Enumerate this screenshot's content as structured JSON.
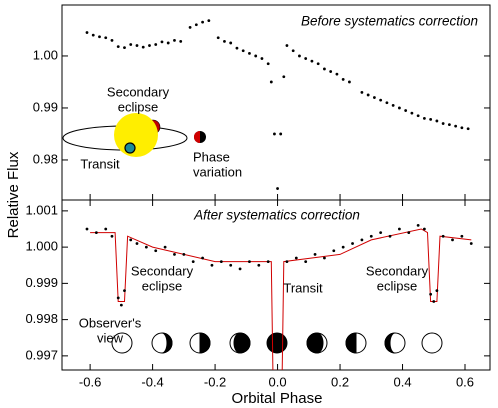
{
  "chart_data": [
    {
      "type": "scatter",
      "ylabel": "Relative Flux",
      "annotations": [
        [
          "Before systematics correction"
        ],
        [
          "Secondary",
          "eclipse"
        ],
        [
          "Transit"
        ],
        [
          "Phase",
          "variation"
        ]
      ],
      "color": "#000000",
      "x": [
        -0.61,
        -0.59,
        -0.57,
        -0.55,
        -0.53,
        -0.51,
        -0.49,
        -0.47,
        -0.45,
        -0.43,
        -0.41,
        -0.39,
        -0.37,
        -0.35,
        -0.33,
        -0.31,
        -0.28,
        -0.26,
        -0.24,
        -0.22,
        -0.19,
        -0.17,
        -0.15,
        -0.13,
        -0.11,
        -0.09,
        -0.07,
        -0.05,
        -0.03,
        -0.02,
        -0.01,
        0.0,
        0.01,
        0.02,
        0.03,
        0.05,
        0.07,
        0.09,
        0.11,
        0.13,
        0.15,
        0.17,
        0.19,
        0.21,
        0.23,
        0.27,
        0.29,
        0.31,
        0.33,
        0.35,
        0.37,
        0.39,
        0.41,
        0.43,
        0.45,
        0.47,
        0.49,
        0.51,
        0.53,
        0.55,
        0.57,
        0.59,
        0.61
      ],
      "values": [
        1.0045,
        1.004,
        1.0037,
        1.0035,
        1.003,
        1.0018,
        1.0016,
        1.0022,
        1.002,
        1.0017,
        1.002,
        1.0022,
        1.0027,
        1.0025,
        1.003,
        1.0028,
        1.0055,
        1.006,
        1.0065,
        1.0068,
        1.0035,
        1.0028,
        1.0025,
        1.0015,
        1.001,
        1.0005,
        1.0,
        0.9995,
        0.9985,
        0.995,
        0.985,
        0.9745,
        0.985,
        0.996,
        1.002,
        1.001,
        1.0,
        0.9995,
        0.999,
        0.9985,
        0.9975,
        0.997,
        0.9965,
        0.9955,
        0.995,
        0.993,
        0.9925,
        0.992,
        0.9915,
        0.991,
        0.9905,
        0.99,
        0.9895,
        0.989,
        0.9885,
        0.988,
        0.9878,
        0.9875,
        0.987,
        0.9868,
        0.9865,
        0.9862,
        0.986
      ],
      "xlim": [
        -0.69,
        0.68
      ],
      "ylim": [
        0.9723,
        1.0098
      ],
      "yticks": [
        0.98,
        0.99,
        {
          "value": 1.0,
          "label": "1.00"
        }
      ]
    },
    {
      "type": "scatter",
      "xlabel": "Orbital Phase",
      "annotations": [
        [
          "After systematics correction"
        ],
        [
          "Secondary",
          "eclipse"
        ],
        [
          "Transit"
        ],
        [
          "Secondary",
          "eclipse"
        ],
        [
          "Observer's",
          "view"
        ]
      ],
      "color": "#000000",
      "x": [
        -0.61,
        -0.58,
        -0.55,
        -0.53,
        -0.51,
        -0.5,
        -0.49,
        -0.47,
        -0.45,
        -0.42,
        -0.39,
        -0.36,
        -0.33,
        -0.3,
        -0.27,
        -0.24,
        -0.21,
        -0.18,
        -0.15,
        -0.12,
        -0.09,
        -0.06,
        -0.03,
        0.03,
        0.06,
        0.09,
        0.12,
        0.15,
        0.18,
        0.21,
        0.24,
        0.27,
        0.3,
        0.33,
        0.36,
        0.39,
        0.42,
        0.45,
        0.47,
        0.49,
        0.5,
        0.51,
        0.53,
        0.56,
        0.59,
        0.62
      ],
      "values": [
        1.0005,
        1.0004,
        1.0005,
        1.0003,
        0.9986,
        0.9984,
        0.9988,
        1.0002,
        1.0001,
        1.0,
        0.9999,
        1.0,
        0.9998,
        0.9998,
        0.9996,
        0.9997,
        0.9995,
        0.9996,
        0.9995,
        0.9994,
        0.9996,
        0.9995,
        0.9996,
        0.9996,
        0.9997,
        0.9996,
        0.9998,
        0.9997,
        0.9999,
        1.0,
        1.0001,
        1.0002,
        1.0003,
        1.0004,
        1.0003,
        1.0005,
        1.0004,
        1.0006,
        1.0005,
        0.9987,
        0.9985,
        0.9988,
        1.0003,
        1.0002,
        1.0003,
        1.0001
      ],
      "model": {
        "color": "#d00000",
        "x": [
          -0.6,
          -0.52,
          -0.51,
          -0.49,
          -0.48,
          -0.4,
          -0.2,
          -0.02,
          -0.015,
          0.015,
          0.02,
          0.2,
          0.3,
          0.46,
          0.48,
          0.49,
          0.51,
          0.52,
          0.62
        ],
        "values": [
          1.0004,
          1.0004,
          0.9985,
          0.9985,
          1.0003,
          1.0,
          0.9996,
          0.9996,
          0.9966,
          0.9966,
          0.9996,
          0.9998,
          1.0002,
          1.0005,
          1.0004,
          0.9985,
          0.9985,
          1.0003,
          1.0002
        ]
      },
      "xlim": [
        -0.69,
        0.68
      ],
      "ylim": [
        0.99661,
        1.0013
      ],
      "xticks": [
        -0.6,
        -0.4,
        -0.2,
        {
          "value": 0,
          "label": "0.0"
        },
        0.2,
        0.4,
        0.6
      ],
      "yticks": [
        0.997,
        0.998,
        0.999,
        {
          "value": 1.0,
          "label": "1.000"
        },
        1.001
      ]
    }
  ]
}
